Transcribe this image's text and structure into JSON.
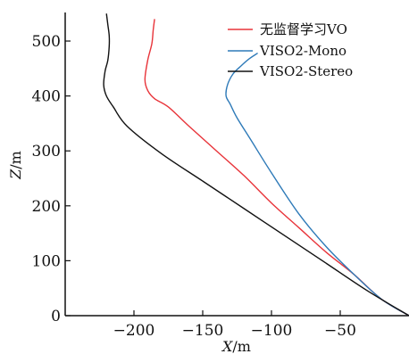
{
  "chart_data": {
    "type": "line",
    "xlabel_var": "X",
    "xlabel_unit": "/m",
    "ylabel_var": "Z",
    "ylabel_unit": "/m",
    "xlim": [
      -250,
      0
    ],
    "ylim": [
      0,
      560
    ],
    "xticks": [
      -200,
      -150,
      -100,
      -50
    ],
    "yticks": [
      0,
      100,
      200,
      300,
      400,
      500
    ],
    "xtick_labels": [
      "−200",
      "−150",
      "−100",
      "−50"
    ],
    "ytick_labels": [
      "0",
      "100",
      "200",
      "300",
      "400",
      "500"
    ],
    "grid": false,
    "legend_position": "top-right",
    "series": [
      {
        "name": "无监督学习VO",
        "color": "#e8343a",
        "x": [
          0,
          -20,
          -40,
          -60,
          -80,
          -100,
          -120,
          -140,
          -160,
          -175,
          -185,
          -190,
          -192,
          -190,
          -187,
          -186,
          -185
        ],
        "y": [
          0,
          30,
          75,
          115,
          160,
          205,
          255,
          300,
          345,
          380,
          395,
          410,
          430,
          465,
          495,
          520,
          540
        ]
      },
      {
        "name": "VISO2-Mono",
        "color": "#2e7ab8",
        "x": [
          0,
          -20,
          -40,
          -60,
          -80,
          -100,
          -115,
          -125,
          -130,
          -133,
          -132,
          -128,
          -122,
          -116,
          -110
        ],
        "y": [
          0,
          30,
          75,
          125,
          185,
          260,
          320,
          360,
          385,
          400,
          420,
          440,
          455,
          468,
          478
        ]
      },
      {
        "name": "VISO2-Stereo",
        "color": "#111111",
        "x": [
          0,
          -30,
          -60,
          -90,
          -120,
          -150,
          -180,
          -205,
          -215,
          -220,
          -222,
          -221,
          -219,
          -218,
          -218,
          -219,
          -220
        ],
        "y": [
          0,
          45,
          95,
          145,
          195,
          245,
          295,
          345,
          380,
          400,
          420,
          445,
          465,
          490,
          510,
          530,
          550
        ]
      }
    ]
  }
}
